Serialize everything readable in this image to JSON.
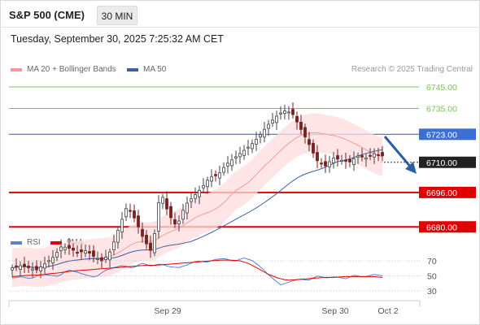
{
  "header": {
    "title": "S&P 500 (CME)",
    "timeframe": "30 MIN",
    "datetime": "Tuesday, September 30, 2025 7:25:32 AM CET"
  },
  "legend": {
    "ma20_label": "MA 20 + Bollinger Bands",
    "ma50_label": "MA 50",
    "credit": "Research © 2025 Trading Central"
  },
  "rsi_legend": {
    "rsi_label": "RSI",
    "ma9_label": "9MA"
  },
  "colors": {
    "ma20": "#f59a9a",
    "ma50": "#3d5fa6",
    "bands": "#ffdcdc",
    "support": "#e00000",
    "resistance": "#7ac35a",
    "pivot": "#3a6fd8",
    "arrow": "#2c5ea8",
    "candle_up": "#444444",
    "candle_down": "#7a2020",
    "rsi": "#5b7fd1",
    "rsi_ma": "#e00000"
  },
  "chart_data": {
    "type": "candlestick",
    "x_tick_labels": [
      "Sep 29",
      "Sep 30",
      "Oct 2"
    ],
    "y_range": [
      6640,
      6760
    ],
    "price_levels": [
      {
        "value": 6745.0,
        "label": "6745.00",
        "kind": "resistance"
      },
      {
        "value": 6735.0,
        "label": "6735.00",
        "kind": "resistance"
      },
      {
        "value": 6723.0,
        "label": "6723.00",
        "kind": "pivot"
      },
      {
        "value": 6710.0,
        "label": "6710.00",
        "kind": "last"
      },
      {
        "value": 6696.0,
        "label": "6696.00",
        "kind": "support"
      },
      {
        "value": 6680.0,
        "label": "6680.00",
        "kind": "support"
      }
    ],
    "close_path": [
      6661,
      6662,
      6661,
      6660,
      6663,
      6666,
      6671,
      6670,
      6668,
      6669,
      6666,
      6664,
      6669,
      6680,
      6690,
      6683,
      6674,
      6668,
      6697,
      6686,
      6680,
      6690,
      6694,
      6698,
      6703,
      6704,
      6709,
      6712,
      6715,
      6718,
      6722,
      6727,
      6731,
      6734,
      6733,
      6726,
      6719,
      6711,
      6708,
      6712,
      6711,
      6710,
      6713,
      6712,
      6714,
      6713
    ],
    "rsi": {
      "y_ticks": [
        70,
        50,
        30
      ],
      "rsi_path": [
        47,
        49,
        46,
        52,
        51,
        49,
        58,
        55,
        51,
        48,
        57,
        61,
        64,
        60,
        67,
        63,
        66,
        62,
        61,
        65,
        70,
        68,
        72,
        73,
        69,
        74,
        70,
        60,
        48,
        38,
        42,
        46,
        44,
        50,
        47,
        49,
        46,
        51,
        48,
        52,
        50
      ],
      "ma9_path": [
        49,
        50,
        51,
        51,
        53,
        54,
        56,
        57,
        58,
        59,
        60,
        61,
        62,
        63,
        64,
        64,
        65,
        66,
        67,
        68,
        69,
        70,
        71,
        71,
        70,
        66,
        59,
        52,
        47,
        44,
        45,
        46,
        47,
        48,
        48,
        49,
        49,
        49,
        49,
        48
      ]
    }
  }
}
